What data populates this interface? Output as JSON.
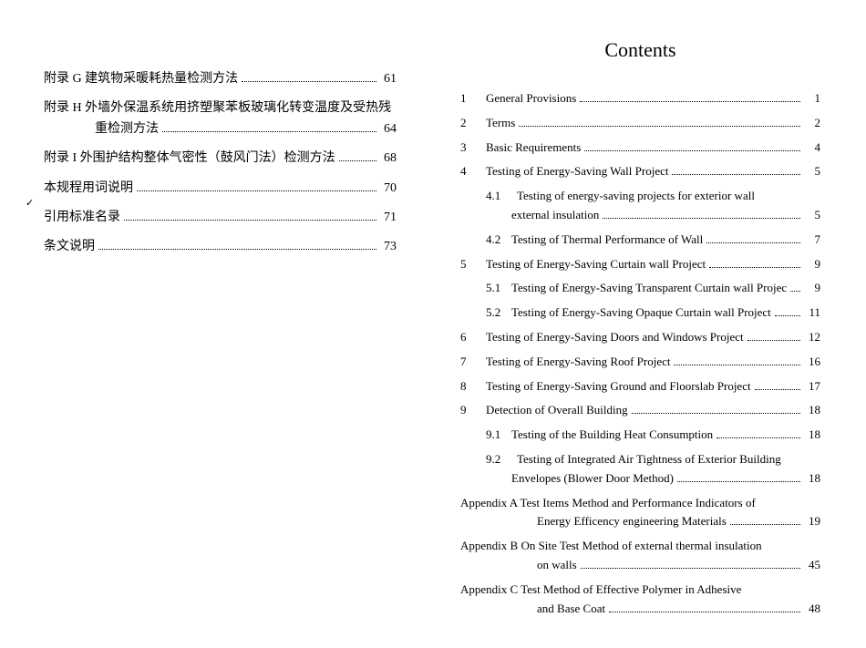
{
  "left": {
    "entries": [
      {
        "label": "附录 G 建筑物采暖耗热量检测方法",
        "page": "61",
        "wrap": false
      },
      {
        "label_line1": "附录 H 外墙外保温系统用挤塑聚苯板玻璃化转变温度及受热残",
        "label_line2": "重检测方法",
        "page": "64",
        "wrap": true,
        "indent2": true
      },
      {
        "label": "附录 I 外围护结构整体气密性（鼓风门法）检测方法",
        "page": "68",
        "wrap": false
      },
      {
        "label": "本规程用词说明",
        "page": "70",
        "wrap": false
      },
      {
        "label": "引用标准名录",
        "page": "71",
        "wrap": false
      },
      {
        "label": "条文说明",
        "page": "73",
        "wrap": false
      }
    ],
    "tick": "✓"
  },
  "right": {
    "title": "Contents",
    "entries": [
      {
        "num": "1",
        "label": "General Provisions",
        "page": "1",
        "indent": 0
      },
      {
        "num": "2",
        "label": "Terms",
        "page": "2",
        "indent": 0
      },
      {
        "num": "3",
        "label": "Basic Requirements",
        "page": "4",
        "indent": 0
      },
      {
        "num": "4",
        "label": "Testing of Energy-Saving Wall Project",
        "page": "5",
        "indent": 0
      },
      {
        "num": "4.1",
        "label_line1": "Testing of energy-saving projects for exterior wall",
        "label_line2": "external insulation",
        "page": "5",
        "indent": 1,
        "wrap": true
      },
      {
        "num": "4.2",
        "label": "Testing of Thermal Performance of Wall",
        "page": "7",
        "indent": 1
      },
      {
        "num": "5",
        "label": "Testing of Energy-Saving Curtain wall Project",
        "page": "9",
        "indent": 0
      },
      {
        "num": "5.1",
        "label": "Testing of Energy-Saving Transparent Curtain wall Projec",
        "page": "9",
        "indent": 1
      },
      {
        "num": "5.2",
        "label": "Testing of Energy-Saving Opaque Curtain wall Project",
        "page": "11",
        "indent": 1
      },
      {
        "num": "6",
        "label": "Testing of Energy-Saving Doors and Windows Project",
        "page": "12",
        "indent": 0
      },
      {
        "num": "7",
        "label": "Testing of Energy-Saving Roof Project",
        "page": "16",
        "indent": 0
      },
      {
        "num": "8",
        "label": "Testing of Energy-Saving Ground and Floorslab Project",
        "page": "17",
        "indent": 0
      },
      {
        "num": "9",
        "label": "Detection of Overall Building",
        "page": "18",
        "indent": 0
      },
      {
        "num": "9.1",
        "label": "Testing of the Building Heat Consumption",
        "page": "18",
        "indent": 1
      },
      {
        "num": "9.2",
        "label_line1": "Testing of Integrated Air Tightness of Exterior Building",
        "label_line2": "Envelopes (Blower Door Method)",
        "page": "18",
        "indent": 1,
        "wrap": true
      },
      {
        "num": "",
        "label_line1": "Appendix A Test Items Method and Performance Indicators of",
        "label_line2": "Energy Efficency engineering Materials",
        "page": "19",
        "indent": 0,
        "wrap": true,
        "nonum": true,
        "wrap_indent": 3
      },
      {
        "num": "",
        "label_line1": "Appendix B On Site Test Method of external thermal insulation",
        "label_line2": "on walls",
        "page": "45",
        "indent": 0,
        "wrap": true,
        "nonum": true,
        "wrap_indent": 3
      },
      {
        "num": "",
        "label_line1": "Appendix C Test Method of Effective Polymer in Adhesive",
        "label_line2": "and Base Coat",
        "page": "48",
        "indent": 0,
        "wrap": true,
        "nonum": true,
        "wrap_indent": 3
      }
    ]
  },
  "colors": {
    "text": "#000000",
    "background": "#ffffff"
  },
  "typography": {
    "title_fontsize": 22,
    "body_fontsize_en": 13,
    "body_fontsize_cn": 14,
    "font_family": "Times New Roman, SimSun, serif"
  }
}
